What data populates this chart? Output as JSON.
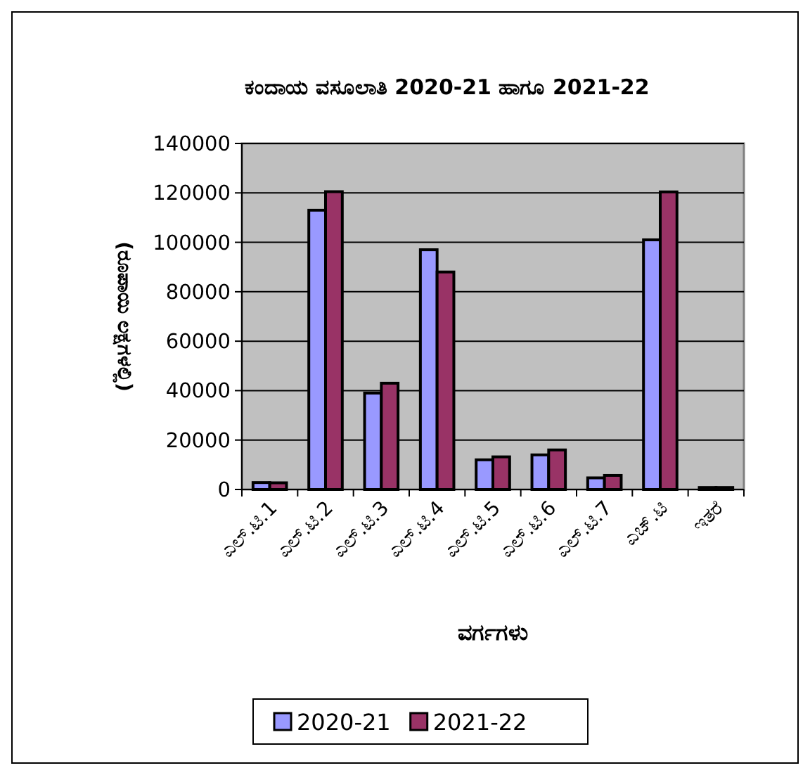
{
  "chart_data": {
    "type": "bar",
    "title": "ಕಂದಾಯ ವಸೂಲಾತಿ 2020-21 ಹಾಗೂ 2021-22",
    "xlabel": "ವರ್ಗಗಳು",
    "ylabel": "(ರೂಪಾಯಿ ಲಕ್ಷಗಳಲ್ಲಿ)",
    "categories": [
      "ಎಲ್.ಟಿ.1",
      "ಎಲ್.ಟಿ.2",
      "ಎಲ್.ಟಿ.3",
      "ಎಲ್.ಟಿ.4",
      "ಎಲ್.ಟಿ.5",
      "ಎಲ್.ಟಿ.6",
      "ಎಲ್.ಟಿ.7",
      "ಎಚ್.ಟಿ",
      "ಇತರೆ"
    ],
    "series": [
      {
        "name": "2020-21",
        "color": "#9999ff",
        "values": [
          2800,
          113000,
          39000,
          97000,
          12000,
          14000,
          4700,
          101000,
          800
        ]
      },
      {
        "name": "2021-22",
        "color": "#993366",
        "values": [
          2700,
          120500,
          43000,
          88000,
          13200,
          16000,
          5700,
          120400,
          800
        ]
      }
    ],
    "ylim": [
      0,
      140000
    ],
    "yticks": [
      0,
      20000,
      40000,
      60000,
      80000,
      100000,
      120000,
      140000
    ],
    "grid": "y",
    "legend": "bottom"
  }
}
